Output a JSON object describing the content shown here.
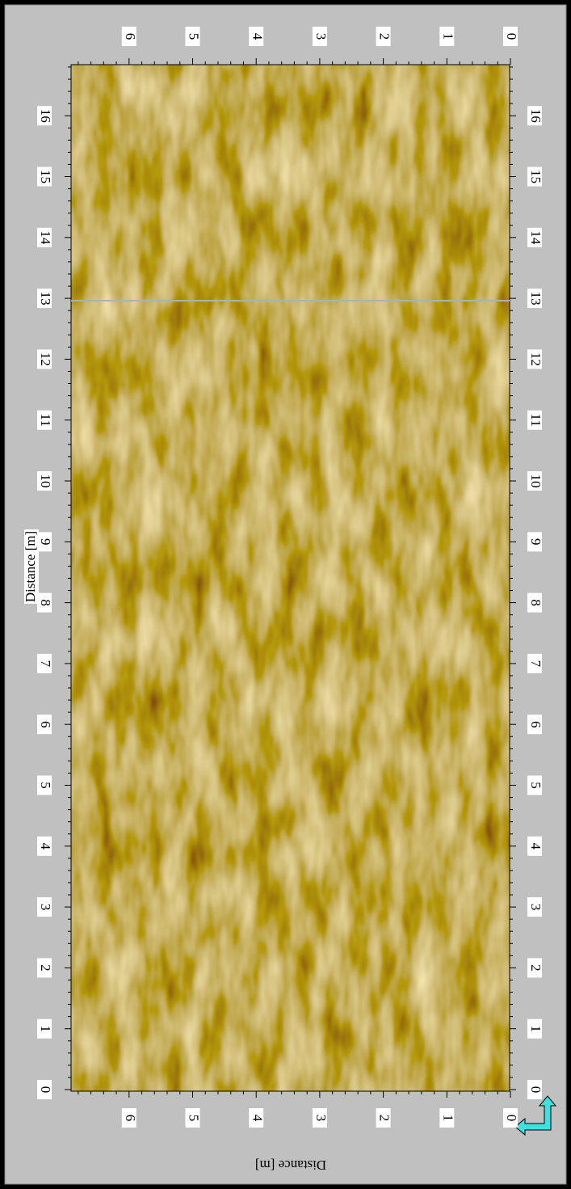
{
  "left_axis": {
    "label": "Distance [m]",
    "ticks": [
      0,
      1,
      2,
      3,
      4,
      5,
      6,
      7,
      8,
      9,
      10,
      11,
      12,
      13,
      14,
      15,
      16
    ]
  },
  "right_axis": {
    "ticks": [
      0,
      1,
      2,
      3,
      4,
      5,
      6,
      7,
      8,
      9,
      10,
      11,
      12,
      13,
      14,
      15,
      16
    ]
  },
  "top_axis": {
    "ticks": [
      0,
      1,
      2,
      3,
      4,
      5,
      6
    ]
  },
  "bottom_axis": {
    "label": "Distance [m]",
    "ticks": [
      0,
      1,
      2,
      3,
      4,
      5,
      6
    ]
  }
}
